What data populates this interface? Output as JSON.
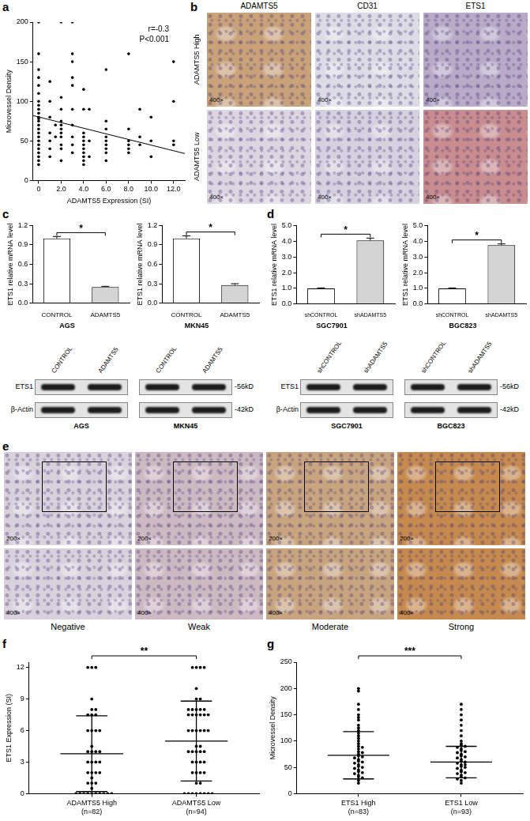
{
  "panel_labels": [
    "a",
    "b",
    "c",
    "d",
    "e",
    "f",
    "g"
  ],
  "chart_data": [
    {
      "type": "scatter",
      "xlabel": "ADAMTS5 Expression (SI)",
      "ylabel": "Microvessel Density",
      "annotations": [
        "r=-0.3",
        "P<0.001"
      ],
      "color": "#000000",
      "x": [
        0,
        0,
        0,
        0,
        0,
        0,
        0,
        0,
        0,
        0,
        0,
        0,
        0,
        0,
        0,
        0,
        0,
        0,
        0,
        0,
        0,
        0,
        0,
        0,
        1,
        1,
        1,
        1,
        1,
        1,
        1,
        1.5,
        1.5,
        2,
        2,
        2,
        2,
        2,
        2,
        2,
        2,
        2,
        2,
        2,
        3,
        3,
        3,
        3,
        3,
        3,
        3,
        3,
        3,
        3,
        4,
        4,
        4,
        4,
        4,
        4,
        4,
        4,
        4,
        4,
        4,
        4.5,
        4.5,
        4.5,
        6,
        6,
        6,
        6,
        6,
        6,
        6,
        6,
        6,
        8,
        8,
        8,
        8,
        8,
        8,
        9,
        9,
        9,
        10,
        10,
        10,
        12,
        12,
        12,
        12
      ],
      "values": [
        200,
        160,
        140,
        130,
        120,
        110,
        100,
        95,
        90,
        85,
        80,
        78,
        75,
        70,
        65,
        60,
        55,
        50,
        45,
        40,
        35,
        30,
        25,
        20,
        125,
        100,
        80,
        60,
        50,
        40,
        30,
        70,
        55,
        200,
        105,
        90,
        75,
        70,
        65,
        60,
        55,
        45,
        40,
        25,
        200,
        160,
        150,
        130,
        120,
        90,
        70,
        55,
        45,
        35,
        115,
        90,
        60,
        55,
        50,
        45,
        40,
        35,
        30,
        25,
        20,
        90,
        50,
        30,
        140,
        75,
        65,
        55,
        50,
        45,
        40,
        35,
        25,
        160,
        65,
        50,
        45,
        40,
        35,
        90,
        55,
        45,
        80,
        50,
        30,
        150,
        100,
        50,
        45
      ],
      "fit": {
        "x": [
          -0.5,
          13
        ],
        "values": [
          82,
          34
        ]
      },
      "xlim": [
        -0.5,
        13
      ],
      "xticks": [
        {
          "value": 0,
          "label": "0"
        },
        {
          "value": 2,
          "label": "2.0"
        },
        {
          "value": 4,
          "label": "4.0"
        },
        {
          "value": 6,
          "label": "6.0"
        },
        {
          "value": 8,
          "label": "8.0"
        },
        {
          "value": 10,
          "label": "10.0"
        },
        {
          "value": 12,
          "label": "12.0"
        }
      ],
      "ylim": [
        0,
        200
      ],
      "yticks": [
        0,
        50,
        100,
        150,
        200
      ],
      "grid": false
    },
    {
      "type": "bar",
      "title": "AGS",
      "ylabel": "ETS1 relative mRNA level",
      "categories": [
        "CONTROL",
        "ADAMTS5"
      ],
      "values": [
        1.0,
        0.25
      ],
      "errors": [
        0.03,
        0.01
      ],
      "colors": [
        "#ffffff",
        "#d4d4d4"
      ],
      "annotation": "*",
      "ylim": [
        0,
        1.2
      ],
      "yticks": [
        {
          "value": 0,
          "label": "0.0"
        },
        {
          "value": 0.3,
          "label": "0.3"
        },
        {
          "value": 0.6,
          "label": "0.6"
        },
        {
          "value": 0.9,
          "label": "0.9"
        },
        {
          "value": 1.2,
          "label": "1.2"
        }
      ],
      "grid": false
    },
    {
      "type": "bar",
      "title": "MKN45",
      "ylabel": "ETS1 relative mRNA level",
      "categories": [
        "CONTROL",
        "ADAMTS5"
      ],
      "values": [
        1.0,
        0.28
      ],
      "errors": [
        0.04,
        0.02
      ],
      "colors": [
        "#ffffff",
        "#d4d4d4"
      ],
      "annotation": "*",
      "ylim": [
        0,
        1.2
      ],
      "yticks": [
        {
          "value": 0,
          "label": "0.0"
        },
        {
          "value": 0.3,
          "label": "0.3"
        },
        {
          "value": 0.6,
          "label": "0.6"
        },
        {
          "value": 0.9,
          "label": "0.9"
        },
        {
          "value": 1.2,
          "label": "1.2"
        }
      ],
      "grid": false
    },
    {
      "type": "bar",
      "title": "SGC7901",
      "ylabel": "ETS1 relative mRNA level",
      "categories": [
        "shCONTROL",
        "shADAMTS5"
      ],
      "values": [
        1.0,
        4.05
      ],
      "errors": [
        0.03,
        0.15
      ],
      "colors": [
        "#ffffff",
        "#d4d4d4"
      ],
      "annotation": "*",
      "ylim": [
        0,
        5
      ],
      "yticks": [
        {
          "value": 0,
          "label": "0.0"
        },
        {
          "value": 1,
          "label": "1.0"
        },
        {
          "value": 2,
          "label": "2.0"
        },
        {
          "value": 3,
          "label": "3.0"
        },
        {
          "value": 4,
          "label": "4.0"
        },
        {
          "value": 5,
          "label": "5.0"
        }
      ],
      "grid": false
    },
    {
      "type": "bar",
      "title": "BGC823",
      "ylabel": "ETS1 relative mRNA level",
      "categories": [
        "shCONTROL",
        "shADAMTS5"
      ],
      "values": [
        1.0,
        3.75
      ],
      "errors": [
        0.03,
        0.08
      ],
      "colors": [
        "#ffffff",
        "#d4d4d4"
      ],
      "annotation": "*",
      "ylim": [
        0,
        5
      ],
      "yticks": [
        {
          "value": 0,
          "label": "0.0"
        },
        {
          "value": 1,
          "label": "1.0"
        },
        {
          "value": 2,
          "label": "2.0"
        },
        {
          "value": 3,
          "label": "3.0"
        },
        {
          "value": 4,
          "label": "4.0"
        },
        {
          "value": 5,
          "label": "5.0"
        }
      ],
      "grid": false
    },
    {
      "type": "strip",
      "ylabel": "ETS1 Expression (SI)",
      "categories": [
        "ADAMTS5 High\n(n=82)",
        "ADAMTS5 Low\n(n=94)"
      ],
      "color": "#000000",
      "annotation": "**",
      "values": [
        [
          0,
          0,
          0,
          0,
          0,
          0,
          0,
          0,
          0,
          0,
          0.5,
          1,
          1,
          1,
          1.5,
          2,
          2,
          2,
          2,
          3,
          3,
          3,
          3,
          4,
          4,
          4,
          4,
          4.5,
          6,
          6,
          6,
          6,
          7.5,
          7.5,
          7.5,
          8,
          8,
          9,
          12,
          12,
          12
        ],
        [
          0,
          0,
          0,
          0,
          0,
          0,
          0,
          0,
          1,
          1,
          2,
          2,
          2,
          2,
          3,
          3,
          3,
          3,
          4,
          4,
          4,
          4,
          4,
          4.5,
          4.5,
          6,
          6,
          6,
          6,
          6,
          6,
          7.5,
          7.5,
          7.5,
          7.5,
          7.5,
          7.5,
          8,
          8,
          8,
          8,
          8,
          9,
          9,
          10,
          12,
          12,
          12,
          12
        ]
      ],
      "mean": [
        3.8,
        5.0
      ],
      "sd": [
        3.6,
        3.8
      ],
      "ylim": [
        0,
        12.5
      ],
      "yticks": [
        0,
        3,
        6,
        9,
        12
      ],
      "grid": false
    },
    {
      "type": "strip",
      "ylabel": "Microvessel Density",
      "categories": [
        "ETS1 High\n(n=83)",
        "ETS1 Low\n(n=93)"
      ],
      "color": "#000000",
      "annotation": "***",
      "values": [
        [
          200,
          195,
          170,
          160,
          150,
          145,
          140,
          130,
          125,
          120,
          115,
          110,
          105,
          100,
          95,
          90,
          88,
          85,
          80,
          78,
          75,
          72,
          70,
          68,
          65,
          62,
          60,
          58,
          55,
          52,
          50,
          48,
          45,
          42,
          40,
          38,
          35,
          32,
          30,
          25,
          20
        ],
        [
          170,
          160,
          150,
          140,
          130,
          120,
          110,
          100,
          95,
          92,
          90,
          88,
          85,
          82,
          80,
          78,
          75,
          72,
          70,
          68,
          65,
          62,
          60,
          58,
          55,
          55,
          52,
          50,
          48,
          45,
          42,
          40,
          38,
          35,
          32,
          30,
          28,
          25,
          20
        ]
      ],
      "mean": [
        73,
        60
      ],
      "sd": [
        45,
        30
      ],
      "ylim": [
        0,
        250
      ],
      "yticks": [
        0,
        50,
        100,
        150,
        200,
        250
      ],
      "grid": false
    }
  ],
  "micrographs_b": {
    "columns": [
      "ADAMTS5",
      "CD31",
      "ETS1"
    ],
    "rows": [
      "ADAMTS5 High",
      "ADAMTS5 Low"
    ],
    "magnification": "400×"
  },
  "micrographs_e": {
    "grades": [
      "Negative",
      "Weak",
      "Moderate",
      "Strong"
    ],
    "magnifications": [
      "200×",
      "400×"
    ]
  },
  "blots": [
    {
      "lanes": [
        "CONTROL",
        "ADAMTS5"
      ],
      "cell_lines": [
        "AGS",
        "MKN45"
      ],
      "rows": [
        {
          "protein": "ETS1",
          "size": "-56kD"
        },
        {
          "protein": "β-Actin",
          "size": "-42kD"
        }
      ]
    },
    {
      "lanes": [
        "shCONTROL",
        "shADAMTS5"
      ],
      "cell_lines": [
        "SGC7901",
        "BGC823"
      ],
      "rows": [
        {
          "protein": "ETS1",
          "size": "-56kD"
        },
        {
          "protein": "β-Actin",
          "size": "-42kD"
        }
      ]
    }
  ]
}
